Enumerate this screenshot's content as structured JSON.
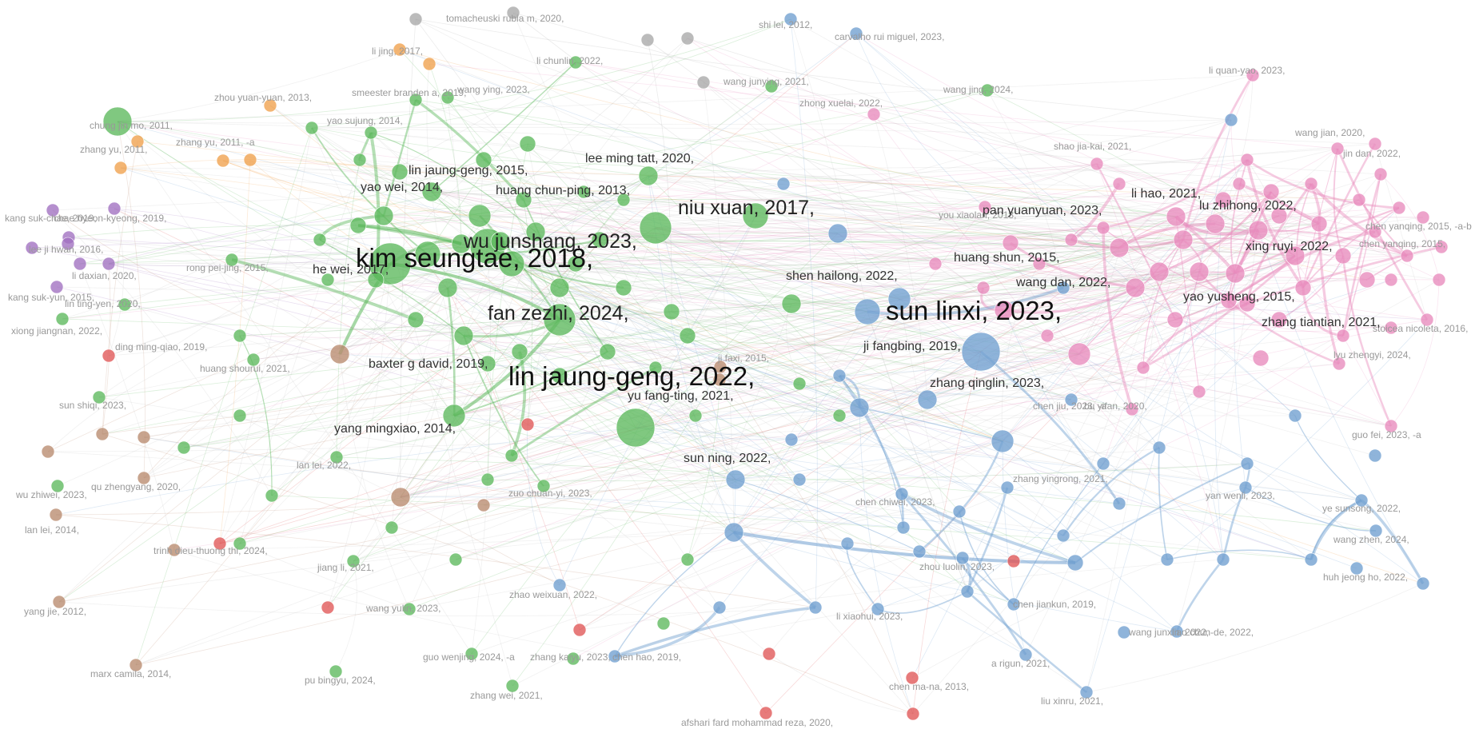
{
  "cluster_colors": {
    "green": "#5cb85c",
    "pink": "#e88bbd",
    "blue": "#6f9fd0",
    "gray": "#a8a8a8",
    "orange": "#f0a04b",
    "purple": "#a070c0",
    "brown": "#b98a6e",
    "red": "#e05656"
  },
  "labels": [
    {
      "text": "kim seungtae, 2018,",
      "cluster": "green",
      "tier": 4
    },
    {
      "text": "wu junshang, 2023,",
      "cluster": "green",
      "tier": 3
    },
    {
      "text": "lin jaung-geng, 2022,",
      "cluster": "green",
      "tier": 4
    },
    {
      "text": "fan zezhi, 2024,",
      "cluster": "green",
      "tier": 3
    },
    {
      "text": "niu xuan, 2017,",
      "cluster": "green",
      "tier": 3
    },
    {
      "text": "sun linxi, 2023,",
      "cluster": "blue",
      "tier": 4
    },
    {
      "text": "wang dan, 2022,",
      "cluster": "pink",
      "tier": 2
    },
    {
      "text": "shen hailong, 2022,",
      "cluster": "blue",
      "tier": 2
    },
    {
      "text": "zhang qinglin, 2023,",
      "cluster": "blue",
      "tier": 2
    },
    {
      "text": "ji fangbing, 2019,",
      "cluster": "blue",
      "tier": 2
    },
    {
      "text": "huang shun, 2015,",
      "cluster": "pink",
      "tier": 2
    },
    {
      "text": "li hao, 2021,",
      "cluster": "pink",
      "tier": 2
    },
    {
      "text": "lu zhihong, 2022,",
      "cluster": "pink",
      "tier": 2
    },
    {
      "text": "xing ruyi, 2022,",
      "cluster": "pink",
      "tier": 2
    },
    {
      "text": "zhang tiantian, 2021,",
      "cluster": "pink",
      "tier": 2
    },
    {
      "text": "yao yusheng, 2015,",
      "cluster": "pink",
      "tier": 2
    },
    {
      "text": "pan yuanyuan, 2023,",
      "cluster": "pink",
      "tier": 2
    },
    {
      "text": "he wei, 2017,",
      "cluster": "brown",
      "tier": 2
    },
    {
      "text": "baxter g david, 2019,",
      "cluster": "green",
      "tier": 2
    },
    {
      "text": "yu fang-ting, 2021,",
      "cluster": "blue",
      "tier": 2
    },
    {
      "text": "yang mingxiao, 2014,",
      "cluster": "brown",
      "tier": 2
    },
    {
      "text": "sun ning, 2022,",
      "cluster": "blue",
      "tier": 2
    },
    {
      "text": "lin jaung-geng, 2015,",
      "cluster": "green",
      "tier": 2
    },
    {
      "text": "yao wei, 2014,",
      "cluster": "green",
      "tier": 2
    },
    {
      "text": "huang chun-ping, 2013,",
      "cluster": "green",
      "tier": 2
    },
    {
      "text": "lee ming tatt, 2020,",
      "cluster": "green",
      "tier": 2
    },
    {
      "text": "zhang yingrong, 2021,",
      "cluster": "blue",
      "tier": 1
    },
    {
      "text": "tomacheuski rubia m, 2020,",
      "cluster": "gray",
      "tier": 1
    },
    {
      "text": "shi lei, 2012,",
      "cluster": "blue",
      "tier": 1
    },
    {
      "text": "carvalho rui miguel, 2023,",
      "cluster": "blue",
      "tier": 1
    },
    {
      "text": "li jing, 2017,",
      "cluster": "orange",
      "tier": 1
    },
    {
      "text": "li chunlin, 2022,",
      "cluster": "green",
      "tier": 1
    },
    {
      "text": "wang junying, 2021,",
      "cluster": "green",
      "tier": 1
    },
    {
      "text": "smeester branden a, 2019,",
      "cluster": "green",
      "tier": 1
    },
    {
      "text": "wang ying, 2023,",
      "cluster": "green",
      "tier": 1
    },
    {
      "text": "zhou yuan-yuan, 2013,",
      "cluster": "orange",
      "tier": 1
    },
    {
      "text": "zhong xuelai, 2022,",
      "cluster": "pink",
      "tier": 1
    },
    {
      "text": "wang jing, 2024,",
      "cluster": "green",
      "tier": 1
    },
    {
      "text": "li quan-yao, 2023,",
      "cluster": "pink",
      "tier": 1
    },
    {
      "text": "yao sujung, 2014,",
      "cluster": "green",
      "tier": 1
    },
    {
      "text": "chung jin mo, 2011,",
      "cluster": "green",
      "tier": 1
    },
    {
      "text": "zhang yu, 2011,",
      "cluster": "orange",
      "tier": 1
    },
    {
      "text": "zhang yu, 2011, -a",
      "cluster": "orange",
      "tier": 1
    },
    {
      "text": "shao jia-kai, 2021,",
      "cluster": "pink",
      "tier": 1
    },
    {
      "text": "wang jian, 2020,",
      "cluster": "pink",
      "tier": 1
    },
    {
      "text": "jin dan, 2022,",
      "cluster": "pink",
      "tier": 1
    },
    {
      "text": "kang suk-chae, 2019,",
      "cluster": "purple",
      "tier": 1
    },
    {
      "text": "chae hyeon-kyeong, 2019,",
      "cluster": "purple",
      "tier": 1
    },
    {
      "text": "you xiaolan, 2018,",
      "cluster": "pink",
      "tier": 1
    },
    {
      "text": "chen yanqing, 2015, -a-b",
      "cluster": "pink",
      "tier": 1
    },
    {
      "text": "chen yanqing, 2015,",
      "cluster": "pink",
      "tier": 1
    },
    {
      "text": "lee ji hwan, 2016,",
      "cluster": "purple",
      "tier": 1
    },
    {
      "text": "li daxian, 2020,",
      "cluster": "purple",
      "tier": 1
    },
    {
      "text": "rong pei-jing, 2015,",
      "cluster": "green",
      "tier": 1
    },
    {
      "text": "kang suk-yun, 2015,",
      "cluster": "purple",
      "tier": 1
    },
    {
      "text": "lin ting-yen, 2020,",
      "cluster": "green",
      "tier": 1
    },
    {
      "text": "xiong jiangnan, 2022,",
      "cluster": "green",
      "tier": 1
    },
    {
      "text": "ding ming-qiao, 2019,",
      "cluster": "red",
      "tier": 1
    },
    {
      "text": "ji faxi, 2015,",
      "cluster": "brown",
      "tier": 1
    },
    {
      "text": "stoicea nicoleta, 2016,",
      "cluster": "pink",
      "tier": 1
    },
    {
      "text": "lyu zhengyi, 2024,",
      "cluster": "pink",
      "tier": 1
    },
    {
      "text": "huang shourui, 2021,",
      "cluster": "green",
      "tier": 1
    },
    {
      "text": "sun shiqi, 2023,",
      "cluster": "green",
      "tier": 1
    },
    {
      "text": "chen jiu, 2023, -a",
      "cluster": "blue",
      "tier": 1
    },
    {
      "text": "bu yifan, 2020,",
      "cluster": "pink",
      "tier": 1
    },
    {
      "text": "guo fei, 2023, -a",
      "cluster": "pink",
      "tier": 1
    },
    {
      "text": "lan lei, 2022,",
      "cluster": "green",
      "tier": 1
    },
    {
      "text": "wu zhiwei, 2023,",
      "cluster": "green",
      "tier": 1
    },
    {
      "text": "qu zhengyang, 2020,",
      "cluster": "brown",
      "tier": 1
    },
    {
      "text": "zuo chuan-yi, 2023,",
      "cluster": "green",
      "tier": 1
    },
    {
      "text": "yan wenli, 2023,",
      "cluster": "blue",
      "tier": 1
    },
    {
      "text": "ye sunsong, 2022,",
      "cluster": "blue",
      "tier": 1
    },
    {
      "text": "chen chiwei, 2023,",
      "cluster": "blue",
      "tier": 1
    },
    {
      "text": "lan lei, 2014,",
      "cluster": "brown",
      "tier": 1
    },
    {
      "text": "wang zhen, 2024,",
      "cluster": "blue",
      "tier": 1
    },
    {
      "text": "trinh dieu-thuong thi, 2024,",
      "cluster": "brown",
      "tier": 1
    },
    {
      "text": "jiang li, 2021,",
      "cluster": "green",
      "tier": 1
    },
    {
      "text": "zhou luolin, 2023,",
      "cluster": "blue",
      "tier": 1
    },
    {
      "text": "huh jeong ho, 2022,",
      "cluster": "blue",
      "tier": 1
    },
    {
      "text": "zhao weixuan, 2022,",
      "cluster": "blue",
      "tier": 1
    },
    {
      "text": "yang jie, 2012,",
      "cluster": "brown",
      "tier": 1
    },
    {
      "text": "wang yulin, 2023,",
      "cluster": "green",
      "tier": 1
    },
    {
      "text": "li xiaohui, 2023,",
      "cluster": "blue",
      "tier": 1
    },
    {
      "text": "chen jiankun, 2019,",
      "cluster": "blue",
      "tier": 1
    },
    {
      "text": "liao chun-de, 2022,",
      "cluster": "blue",
      "tier": 1
    },
    {
      "text": "wang junxin, 2022,",
      "cluster": "blue",
      "tier": 1
    },
    {
      "text": "guo wenjing, 2024, -a",
      "cluster": "green",
      "tier": 1
    },
    {
      "text": "zhang kaiyu, 2023,",
      "cluster": "green",
      "tier": 1
    },
    {
      "text": "chen hao, 2019,",
      "cluster": "blue",
      "tier": 1
    },
    {
      "text": "marx camila, 2014,",
      "cluster": "brown",
      "tier": 1
    },
    {
      "text": "pu bingyu, 2024,",
      "cluster": "green",
      "tier": 1
    },
    {
      "text": "a rigun, 2021,",
      "cluster": "blue",
      "tier": 1
    },
    {
      "text": "zhang wei, 2021,",
      "cluster": "green",
      "tier": 1
    },
    {
      "text": "chen ma-na, 2013,",
      "cluster": "red",
      "tier": 1
    },
    {
      "text": "liu xinru, 2021,",
      "cluster": "blue",
      "tier": 1
    },
    {
      "text": "afshari fard mohammad reza, 2020,",
      "cluster": "red",
      "tier": 1
    }
  ]
}
